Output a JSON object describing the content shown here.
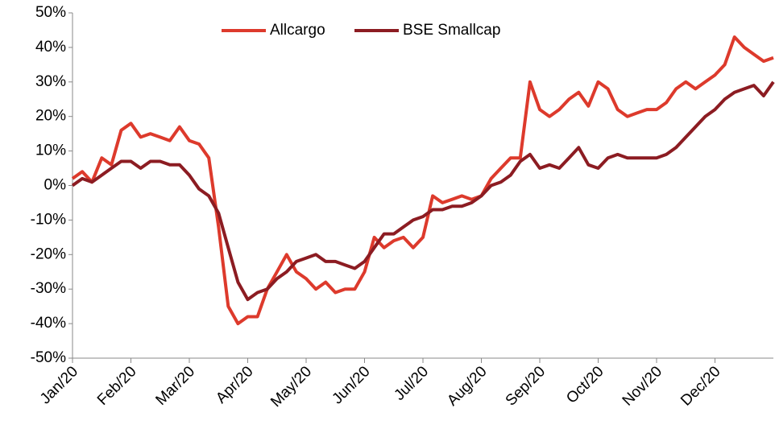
{
  "chart_data": {
    "type": "line",
    "categories": [
      "Jan/20",
      null,
      null,
      null,
      null,
      null,
      "Feb/20",
      null,
      null,
      null,
      null,
      null,
      "Mar/20",
      null,
      null,
      null,
      null,
      null,
      "Apr/20",
      null,
      null,
      null,
      null,
      null,
      "May/20",
      null,
      null,
      null,
      null,
      null,
      "Jun/20",
      null,
      null,
      null,
      null,
      null,
      "Jul/20",
      null,
      null,
      null,
      null,
      null,
      "Aug/20",
      null,
      null,
      null,
      null,
      null,
      "Sep/20",
      null,
      null,
      null,
      null,
      null,
      "Oct/20",
      null,
      null,
      null,
      null,
      null,
      "Nov/20",
      null,
      null,
      null,
      null,
      null,
      "Dec/20",
      null,
      null,
      null,
      null,
      null,
      null
    ],
    "series": [
      {
        "name": "Allcargo",
        "color": "#dd3a2c",
        "values": [
          2,
          4,
          1,
          8,
          6,
          16,
          18,
          14,
          15,
          14,
          13,
          17,
          13,
          12,
          8,
          -12,
          -35,
          -40,
          -38,
          -38,
          -30,
          -25,
          -20,
          -25,
          -27,
          -30,
          -28,
          -31,
          -30,
          -30,
          -25,
          -15,
          -18,
          -16,
          -15,
          -18,
          -15,
          -3,
          -5,
          -4,
          -3,
          -4,
          -3,
          2,
          5,
          8,
          8,
          30,
          22,
          20,
          22,
          25,
          27,
          23,
          30,
          28,
          22,
          20,
          21,
          22,
          22,
          24,
          28,
          30,
          28,
          30,
          32,
          35,
          43,
          40,
          38,
          36,
          37
        ]
      },
      {
        "name": "BSE Smallcap",
        "color": "#8c1c22",
        "values": [
          0,
          2,
          1,
          3,
          5,
          7,
          7,
          5,
          7,
          7,
          6,
          6,
          3,
          -1,
          -3,
          -8,
          -18,
          -28,
          -33,
          -31,
          -30,
          -27,
          -25,
          -22,
          -21,
          -20,
          -22,
          -22,
          -23,
          -24,
          -22,
          -18,
          -14,
          -14,
          -12,
          -10,
          -9,
          -7,
          -7,
          -6,
          -6,
          -5,
          -3,
          0,
          1,
          3,
          7,
          9,
          5,
          6,
          5,
          8,
          11,
          6,
          5,
          8,
          9,
          8,
          8,
          8,
          8,
          9,
          11,
          14,
          17,
          20,
          22,
          25,
          27,
          28,
          29,
          26,
          30
        ]
      }
    ],
    "ylim": [
      -50,
      50
    ],
    "yticks": [
      {
        "value": -50,
        "label": "-50%"
      },
      {
        "value": -40,
        "label": "-40%"
      },
      {
        "value": -30,
        "label": "-30%"
      },
      {
        "value": -20,
        "label": "-20%"
      },
      {
        "value": -10,
        "label": "-10%"
      },
      {
        "value": 0,
        "label": "0%"
      },
      {
        "value": 10,
        "label": "10%"
      },
      {
        "value": 20,
        "label": "20%"
      },
      {
        "value": 30,
        "label": "30%"
      },
      {
        "value": 40,
        "label": "40%"
      },
      {
        "value": 50,
        "label": "50%"
      }
    ],
    "grid": false,
    "legend": "top"
  }
}
